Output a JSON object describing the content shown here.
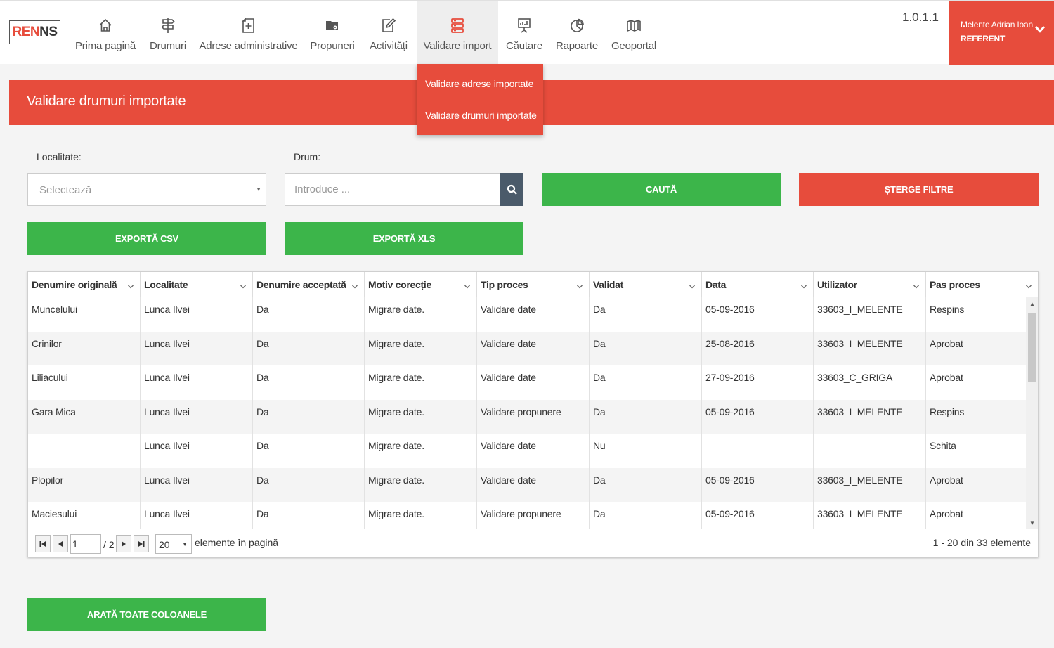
{
  "logo": {
    "part1": "REN",
    "part2": "NS"
  },
  "nav": {
    "items": [
      {
        "label": "Prima pagină",
        "icon": "home-icon"
      },
      {
        "label": "Drumuri",
        "icon": "signpost-icon"
      },
      {
        "label": "Adrese administrative",
        "icon": "document-plus-icon"
      },
      {
        "label": "Propuneri",
        "icon": "folder-gear-icon"
      },
      {
        "label": "Activități",
        "icon": "edit-icon"
      },
      {
        "label": "Validare import",
        "icon": "database-icon"
      },
      {
        "label": "Căutare",
        "icon": "presentation-icon"
      },
      {
        "label": "Rapoarte",
        "icon": "pie-chart-icon"
      },
      {
        "label": "Geoportal",
        "icon": "map-icon"
      }
    ],
    "dropdown": [
      "Validare adrese importate",
      "Validare drumuri importate"
    ]
  },
  "version": "1.0.1.1",
  "user": {
    "name": "Melente Adrian Ioan",
    "role": "REFERENT"
  },
  "page": {
    "title": "Validare drumuri importate"
  },
  "filters": {
    "localitate_label": "Localitate:",
    "localitate_value": "Selectează",
    "drum_label": "Drum:",
    "drum_placeholder": "Introduce ..."
  },
  "buttons": {
    "search": "CAUTĂ",
    "clear": "ȘTERGE FILTRE",
    "export_csv": "EXPORTĂ CSV",
    "export_xls": "EXPORTĂ XLS",
    "show_all": "ARATĂ TOATE COLOANELE"
  },
  "table": {
    "columns": [
      "Denumire originală",
      "Localitate",
      "Denumire acceptată",
      "Motiv corecție",
      "Tip proces",
      "Validat",
      "Data",
      "Utilizator",
      "Pas proces"
    ],
    "rows": [
      [
        "Muncelului",
        "Lunca Ilvei",
        "Da",
        "Migrare date.",
        "Validare date",
        "Da",
        "05-09-2016",
        "33603_I_MELENTE",
        "Respins"
      ],
      [
        "Crinilor",
        "Lunca Ilvei",
        "Da",
        "Migrare date.",
        "Validare date",
        "Da",
        "25-08-2016",
        "33603_I_MELENTE",
        "Aprobat"
      ],
      [
        "Liliacului",
        "Lunca Ilvei",
        "Da",
        "Migrare date.",
        "Validare date",
        "Da",
        "27-09-2016",
        "33603_C_GRIGA",
        "Aprobat"
      ],
      [
        "Gara Mica",
        "Lunca Ilvei",
        "Da",
        "Migrare date.",
        "Validare propunere",
        "Da",
        "05-09-2016",
        "33603_I_MELENTE",
        "Respins"
      ],
      [
        "",
        "Lunca Ilvei",
        "Da",
        "Migrare date.",
        "Validare date",
        "Nu",
        "",
        "",
        "Schita"
      ],
      [
        "Plopilor",
        "Lunca Ilvei",
        "Da",
        "Migrare date.",
        "Validare date",
        "Da",
        "05-09-2016",
        "33603_I_MELENTE",
        "Aprobat"
      ],
      [
        "Maciesului",
        "Lunca Ilvei",
        "Da",
        "Migrare date.",
        "Validare propunere",
        "Da",
        "05-09-2016",
        "33603_I_MELENTE",
        "Aprobat"
      ]
    ]
  },
  "pager": {
    "current_page": "1",
    "total_pages": "/ 2",
    "page_size": "20",
    "per_page_label": "elemente în pagină",
    "info": "1 - 20 din 33 elemente"
  },
  "colors": {
    "accent_red": "#e74c3c",
    "accent_green": "#3cb54a",
    "dark_slate": "#4a5a6a"
  }
}
